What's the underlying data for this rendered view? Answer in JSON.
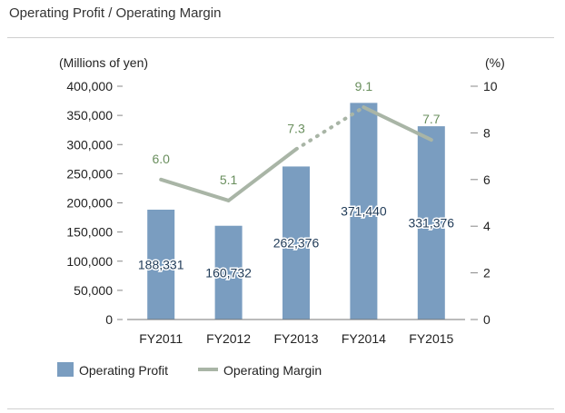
{
  "title": "Operating Profit / Operating Margin",
  "chart_data": {
    "type": "bar",
    "categories": [
      "FY2011",
      "FY2012",
      "FY2013",
      "FY2014",
      "FY2015"
    ],
    "series": [
      {
        "name": "Operating Profit",
        "type": "bar",
        "axis": "left",
        "values": [
          188331,
          160732,
          262376,
          371440,
          331376
        ],
        "labels": [
          "188,331",
          "160,732",
          "262,376",
          "371,440",
          "331,376"
        ]
      },
      {
        "name": "Operating Margin",
        "type": "line",
        "axis": "right",
        "values": [
          6.0,
          5.1,
          7.3,
          9.1,
          7.7
        ],
        "labels": [
          "6.0",
          "5.1",
          "7.3",
          "9.1",
          "7.7"
        ]
      }
    ],
    "ylabel_left": "(Millions of yen)",
    "ylabel_right": "(%)",
    "ylim_left": [
      0,
      400000
    ],
    "ylim_right": [
      0,
      10
    ],
    "yticks_left": [
      "0",
      "50,000",
      "100,000",
      "150,000",
      "200,000",
      "250,000",
      "300,000",
      "350,000",
      "400,000"
    ],
    "yticks_right": [
      "0",
      "2",
      "4",
      "6",
      "8",
      "10"
    ],
    "grid": false,
    "legend": "bottom-left",
    "colors": {
      "bar": "#7a9dc0",
      "line": "#a9b5a6",
      "bar_label": "#1f3a57",
      "line_label": "#6a8f5e"
    }
  }
}
